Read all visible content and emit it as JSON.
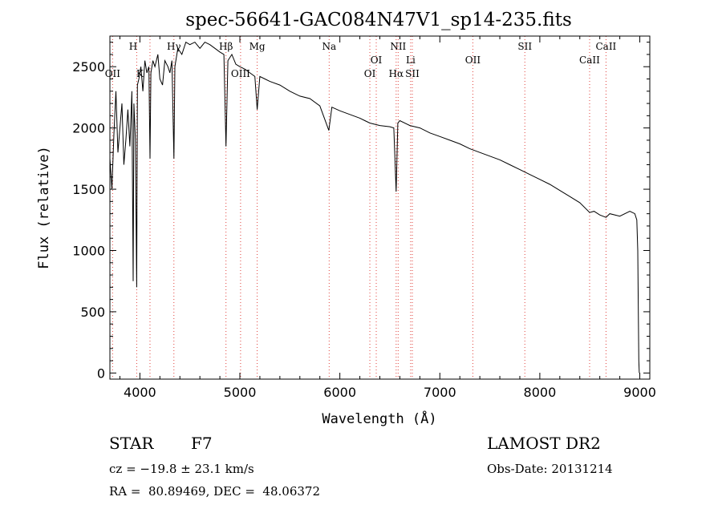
{
  "chart_data": {
    "type": "line",
    "title": "spec-56641-GAC084N47V1_sp14-235.fits",
    "xlabel": "Wavelength (Å)",
    "ylabel": "Flux (relative)",
    "xlim": [
      3700,
      9100
    ],
    "ylim": [
      -50,
      2750
    ],
    "xticks": [
      4000,
      5000,
      6000,
      7000,
      8000,
      9000
    ],
    "yticks": [
      0,
      500,
      1000,
      1500,
      2000,
      2500
    ],
    "series": [
      {
        "name": "flux",
        "x": [
          3700,
          3720,
          3740,
          3760,
          3780,
          3800,
          3820,
          3840,
          3860,
          3880,
          3900,
          3920,
          3933,
          3940,
          3955,
          3968,
          3975,
          3990,
          4010,
          4030,
          4050,
          4070,
          4090,
          4101,
          4110,
          4130,
          4150,
          4180,
          4200,
          4226,
          4250,
          4280,
          4300,
          4320,
          4340,
          4350,
          4380,
          4420,
          4460,
          4500,
          4550,
          4600,
          4650,
          4700,
          4750,
          4800,
          4840,
          4861,
          4880,
          4920,
          4960,
          5000,
          5050,
          5100,
          5150,
          5173,
          5200,
          5250,
          5300,
          5400,
          5500,
          5600,
          5700,
          5800,
          5890,
          5920,
          6000,
          6100,
          6200,
          6250,
          6300,
          6400,
          6500,
          6540,
          6563,
          6580,
          6600,
          6700,
          6800,
          6900,
          7000,
          7100,
          7200,
          7300,
          7400,
          7500,
          7600,
          7700,
          7800,
          7900,
          8000,
          8100,
          8200,
          8300,
          8400,
          8498,
          8542,
          8600,
          8662,
          8700,
          8800,
          8900,
          8950,
          8970,
          8980,
          8985,
          8990,
          8995
        ],
        "values": [
          1750,
          1500,
          1950,
          2300,
          1800,
          2000,
          2200,
          1700,
          1900,
          2150,
          1850,
          2300,
          750,
          2200,
          1900,
          700,
          2350,
          2400,
          2500,
          2300,
          2550,
          2450,
          2500,
          1750,
          2450,
          2550,
          2500,
          2600,
          2400,
          2350,
          2550,
          2500,
          2450,
          2550,
          1750,
          2500,
          2650,
          2600,
          2700,
          2680,
          2700,
          2650,
          2700,
          2680,
          2650,
          2620,
          2600,
          1850,
          2550,
          2600,
          2520,
          2500,
          2480,
          2450,
          2420,
          2150,
          2420,
          2400,
          2380,
          2350,
          2300,
          2260,
          2240,
          2180,
          1980,
          2170,
          2140,
          2110,
          2080,
          2060,
          2040,
          2020,
          2010,
          2000,
          1480,
          2040,
          2060,
          2020,
          2000,
          1960,
          1930,
          1900,
          1870,
          1830,
          1800,
          1770,
          1740,
          1700,
          1660,
          1620,
          1580,
          1540,
          1490,
          1440,
          1390,
          1310,
          1320,
          1290,
          1270,
          1300,
          1280,
          1320,
          1300,
          1250,
          1000,
          500,
          100,
          0
        ]
      }
    ],
    "lines_top": [
      {
        "label": "H",
        "x": 3933
      },
      {
        "label": "Hγ",
        "x": 4340
      },
      {
        "label": "Hβ",
        "x": 4861
      },
      {
        "label": "Mg",
        "x": 5173
      },
      {
        "label": "Na",
        "x": 5893
      },
      {
        "label": "NII",
        "x": 6583
      },
      {
        "label": "SII",
        "x": 7850
      },
      {
        "label": "CaII",
        "x": 8662
      }
    ],
    "lines_middle": [
      {
        "label": "OI",
        "x": 6364
      },
      {
        "label": "Li",
        "x": 6708
      },
      {
        "label": "OII",
        "x": 7330
      },
      {
        "label": "CaII",
        "x": 8498
      }
    ],
    "lines_low": [
      {
        "label": "OII",
        "x": 3727
      },
      {
        "label": "K",
        "x": 4000
      },
      {
        "label": "OIII",
        "x": 5007
      },
      {
        "label": "OI",
        "x": 6300
      },
      {
        "label": "Hα",
        "x": 6563
      },
      {
        "label": "SII",
        "x": 6725
      }
    ],
    "marker_lines_x": [
      3727,
      3968,
      4101,
      4340,
      4861,
      5007,
      5173,
      5893,
      6300,
      6364,
      6563,
      6583,
      6708,
      6725,
      7330,
      7850,
      8498,
      8662
    ]
  },
  "info": {
    "object_class": "STAR",
    "subclass": "F7",
    "survey": "LAMOST DR2",
    "redshift": "cz = −19.8 ± 23.1 km/s",
    "obs_date": "Obs-Date: 20131214",
    "coords": "RA =  80.89469, DEC =  48.06372"
  },
  "colors": {
    "line": "#000000",
    "marker": "#e0403a"
  }
}
